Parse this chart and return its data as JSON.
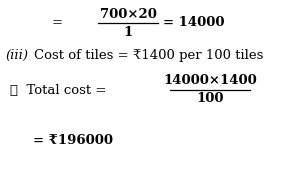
{
  "background_color": "#ffffff",
  "figsize": [
    2.86,
    1.95
  ],
  "dpi": 100,
  "fs": 9.5,
  "fs_bold": 9.5,
  "lines": {
    "line1_eq1": "=",
    "line1_num": "700×20",
    "line1_den": "1",
    "line1_eq2": "= 14000",
    "line2_iii": "(iii)",
    "line2_rest": "  Cost of tiles = ₹1400 per 100 tiles",
    "line3_left": "∴  Total cost =",
    "line3_num": "14000×1400",
    "line3_den": "100",
    "line4": "= ₹196000"
  }
}
